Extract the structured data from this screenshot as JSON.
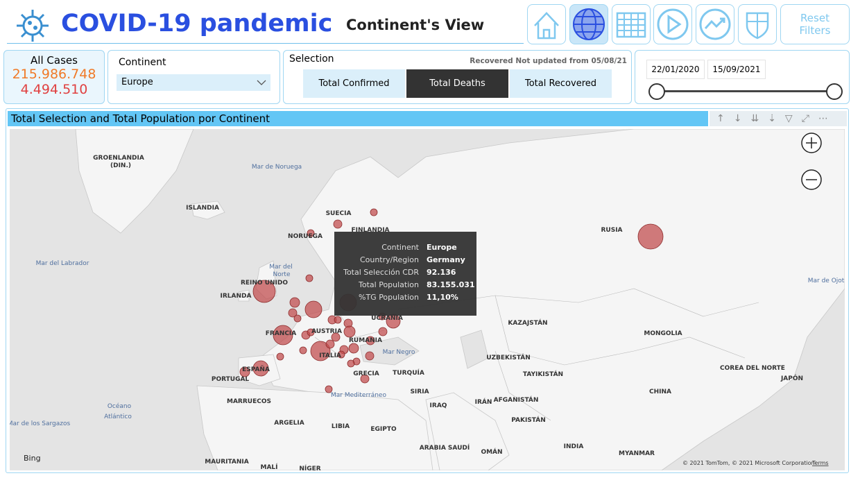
{
  "header": {
    "title": "COVID-19 pandemic",
    "view": "Continent's View",
    "reset": "Reset Filters"
  },
  "cards": {
    "all_cases": {
      "label": "All Cases",
      "confirmed": "215.986.748",
      "deaths": "4.494.510"
    },
    "continent": {
      "label": "Continent",
      "selected": "Europe"
    },
    "selection": {
      "label": "Selection",
      "note": "Recovered Not updated from 05/08/21",
      "options": [
        "Total Confirmed",
        "Total Deaths",
        "Total Recovered"
      ],
      "active": 1
    },
    "dates": {
      "start": "22/01/2020",
      "end": "15/09/2021"
    }
  },
  "visual": {
    "title": "Total Selection and Total Population por Continent",
    "tooltip": [
      [
        "Continent",
        "Europe"
      ],
      [
        "Country/Region",
        "Germany"
      ],
      [
        "Total Selección CDR",
        "92.136"
      ],
      [
        "Total Population",
        "83.155.031"
      ],
      [
        "%TG Population",
        "11,10%"
      ]
    ],
    "map_labels": [
      "GROENLANDIA",
      "(DIN.)",
      "Mar de Noruega",
      "ISLANDIA",
      "SUECIA",
      "FINLANDIA",
      "NORUEGA",
      "RUSIA",
      "Mar del Labrador",
      "Mar del",
      "Norte",
      "REINO UNIDO",
      "IRLANDA",
      "FRANCIA",
      "AUSTRIA",
      "RUMANIA",
      "UCRANIA",
      "ITALIA",
      "ESPAÑA",
      "PORTUGAL",
      "GRECIA",
      "TURQUÍA",
      "Mar Negro",
      "KAZAJSTÁN",
      "MONGOLIA",
      "UZBEKISTÁN",
      "TAYIKISTÁN",
      "CHINA",
      "COREA DEL NORTE",
      "JAPÓN",
      "Mar de Ojotsk",
      "Océano",
      "Atlántico",
      "Mar de los Sargazos",
      "MARRUECOS",
      "ARGELIA",
      "LIBIA",
      "EGIPTO",
      "SIRIA",
      "IRAQ",
      "IRÁN",
      "AFGANISTÁN",
      "PAKISTÁN",
      "ARABIA SAUDÍ",
      "OMÁN",
      "INDIA",
      "MYANMAR",
      "MAURITANIA",
      "MALÍ",
      "NÍGER",
      "Mar Mediterráneo"
    ],
    "bing": "Bing",
    "copyright": "© 2021 TomTom, © 2021 Microsoft Corporation",
    "terms": "Terms"
  }
}
